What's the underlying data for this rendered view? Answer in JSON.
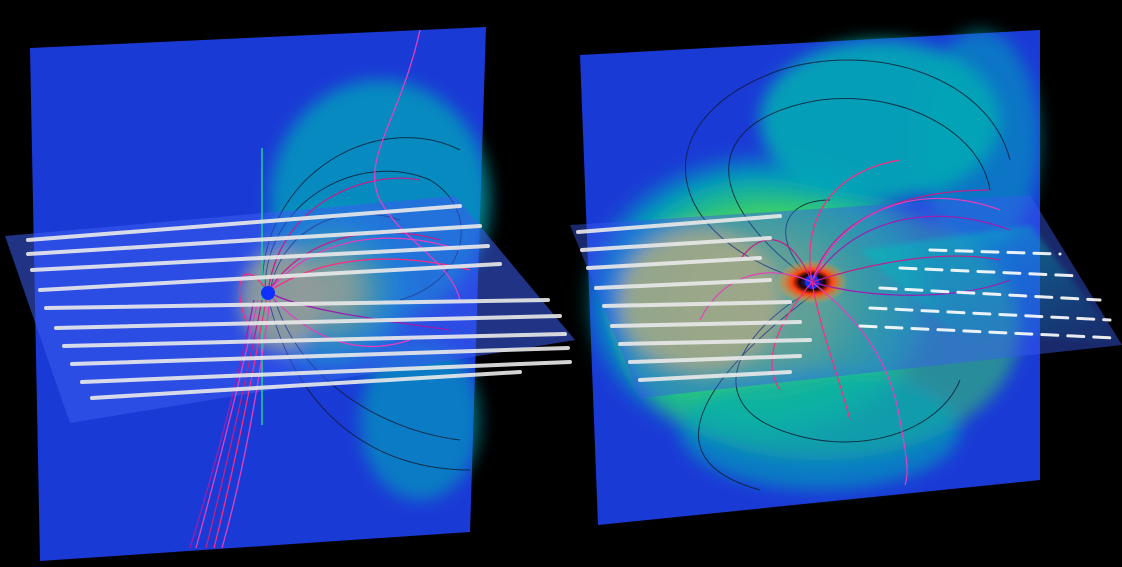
{
  "scene": {
    "background": "#000000",
    "panels": [
      {
        "id": "left",
        "vertical_plane_color": "#1a3ad6",
        "horizontal_plane_color": "#3a5cf0",
        "field_colors": [
          "#1f40d8",
          "#00a6b8",
          "#35d06a",
          "#d8ef2a",
          "#ffe830"
        ],
        "fieldline_colors": [
          "#c0208a",
          "#e040c0",
          "#ff2a80",
          "#9a1fb0"
        ],
        "arrow_color": "#eaeaea"
      },
      {
        "id": "right",
        "vertical_plane_color": "#1a3ad6",
        "horizontal_plane_color": "#3a5cf0",
        "field_colors": [
          "#1f40d8",
          "#00a6b8",
          "#35d06a",
          "#d8ef2a",
          "#ffe830",
          "#ff5010"
        ],
        "fieldline_colors": [
          "#c0208a",
          "#e040c0",
          "#ff2a80",
          "#9a1fb0"
        ],
        "arrow_color": "#eaeaea"
      }
    ]
  }
}
